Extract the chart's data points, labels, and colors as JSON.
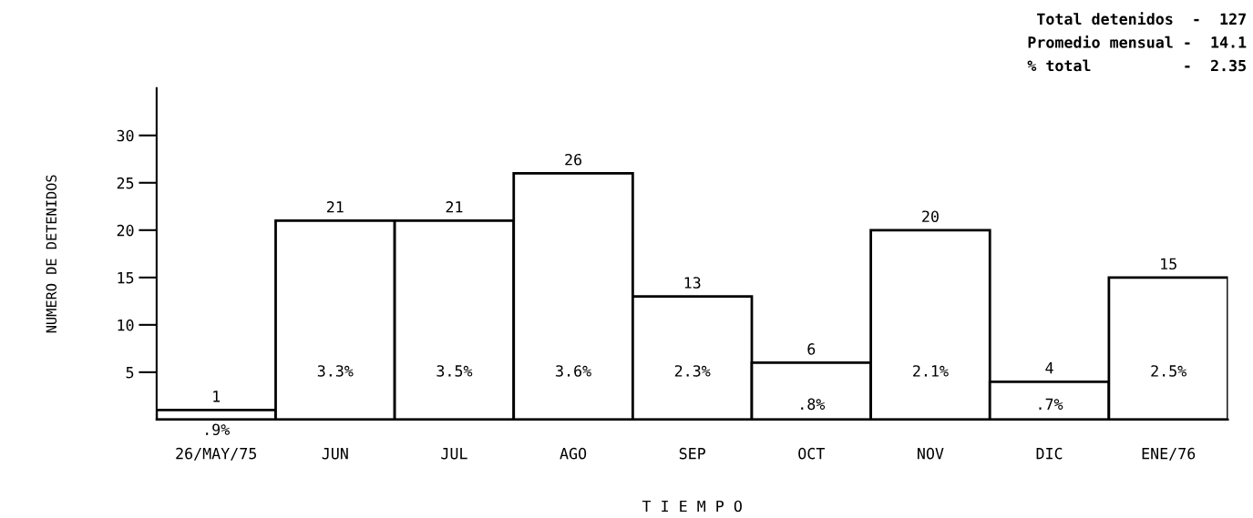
{
  "chart_data": {
    "type": "bar",
    "xlabel": "T I E M P O",
    "ylabel": "NUMERO DE DETENIDOS",
    "categories": [
      "26/MAY/75",
      "JUN",
      "JUL",
      "AGO",
      "SEP",
      "OCT",
      "NOV",
      "DIC",
      "ENE/76"
    ],
    "values": [
      1,
      21,
      21,
      26,
      13,
      6,
      20,
      4,
      15
    ],
    "color": "#ffffff",
    "data_labels": true,
    "ylim": [
      0,
      35
    ],
    "yticks": [
      5,
      10,
      15,
      20,
      25,
      30
    ],
    "grid": false,
    "annotations": [
      ".9%",
      "3.3%",
      "3.5%",
      "3.6%",
      "2.3%",
      ".8%",
      "2.1%",
      ".7%",
      "2.5%",
      "Total detenidos  -  127",
      "Promedio mensual -  14.1",
      "% total          -  2.35"
    ]
  }
}
